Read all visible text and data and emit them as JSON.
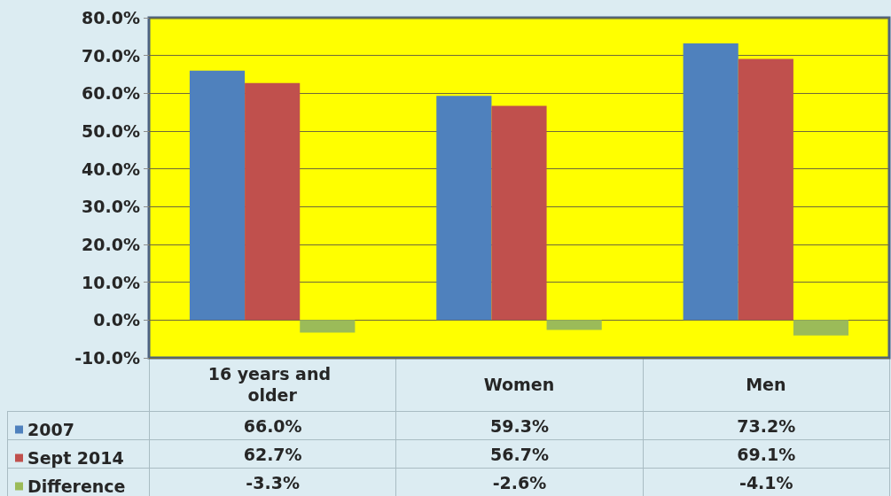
{
  "chart_data": {
    "type": "bar",
    "categories": [
      "16 years and older",
      "Women",
      "Men"
    ],
    "series": [
      {
        "name": "2007",
        "color": "#4f81bd",
        "values": [
          66.0,
          59.3,
          73.2
        ],
        "value_labels": [
          "66.0%",
          "59.3%",
          "73.2%"
        ]
      },
      {
        "name": "Sept 2014",
        "color": "#c0504d",
        "values": [
          62.7,
          56.7,
          69.1
        ],
        "value_labels": [
          "62.7%",
          "56.7%",
          "69.1%"
        ]
      },
      {
        "name": "Difference",
        "color": "#9bbb59",
        "values": [
          -3.3,
          -2.6,
          -4.1
        ],
        "value_labels": [
          "-3.3%",
          "-2.6%",
          "-4.1%"
        ]
      }
    ],
    "ylim": [
      -10,
      80
    ],
    "yticks": [
      {
        "value": -10,
        "label": "-10.0%"
      },
      {
        "value": 0,
        "label": "0.0%"
      },
      {
        "value": 10,
        "label": "10.0%"
      },
      {
        "value": 20,
        "label": "20.0%"
      },
      {
        "value": 30,
        "label": "30.0%"
      },
      {
        "value": 40,
        "label": "40.0%"
      },
      {
        "value": 50,
        "label": "50.0%"
      },
      {
        "value": 60,
        "label": "60.0%"
      },
      {
        "value": 70,
        "label": "70.0%"
      },
      {
        "value": 80,
        "label": "80.0%"
      }
    ],
    "grid": "y",
    "legend": "bottom left"
  }
}
